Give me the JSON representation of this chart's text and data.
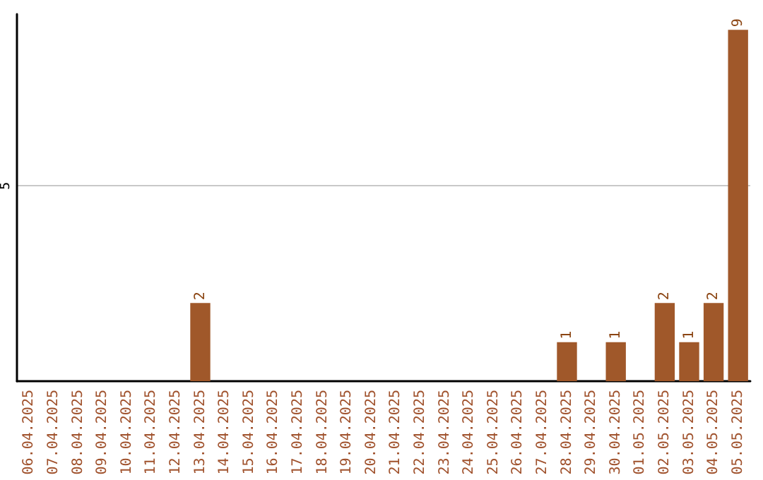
{
  "chart_data": {
    "type": "bar",
    "categories": [
      "06.04.2025",
      "07.04.2025",
      "08.04.2025",
      "09.04.2025",
      "10.04.2025",
      "11.04.2025",
      "12.04.2025",
      "13.04.2025",
      "14.04.2025",
      "15.04.2025",
      "16.04.2025",
      "17.04.2025",
      "18.04.2025",
      "19.04.2025",
      "20.04.2025",
      "21.04.2025",
      "22.04.2025",
      "23.04.2025",
      "24.04.2025",
      "25.04.2025",
      "26.04.2025",
      "27.04.2025",
      "28.04.2025",
      "29.04.2025",
      "30.04.2025",
      "01.05.2025",
      "02.05.2025",
      "03.05.2025",
      "04.05.2025",
      "05.05.2025"
    ],
    "values": [
      0,
      0,
      0,
      0,
      0,
      0,
      0,
      2,
      0,
      0,
      0,
      0,
      0,
      0,
      0,
      0,
      0,
      0,
      0,
      0,
      0,
      0,
      1,
      0,
      1,
      0,
      2,
      1,
      2,
      9
    ],
    "value_labels": [
      null,
      null,
      null,
      null,
      null,
      null,
      null,
      "2",
      null,
      null,
      null,
      null,
      null,
      null,
      null,
      null,
      null,
      null,
      null,
      null,
      null,
      null,
      "1",
      null,
      "1",
      null,
      "2",
      "1",
      "2",
      "9"
    ],
    "color": "#a0582a",
    "ylim": [
      0,
      9.4
    ],
    "yticks": [
      5
    ],
    "grid": "y"
  }
}
